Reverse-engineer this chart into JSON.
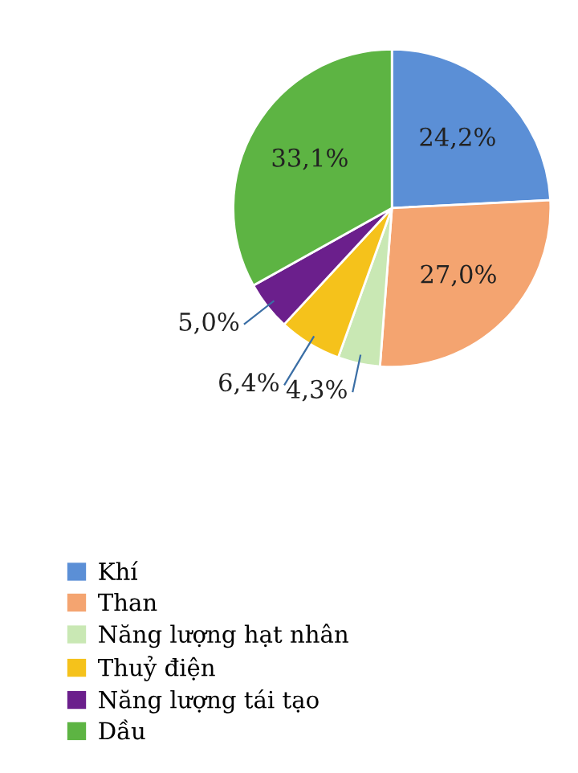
{
  "chart_data": {
    "type": "pie",
    "categories": [
      "Khí",
      "Than",
      "Năng lượng hạt nhân",
      "Thuỷ điện",
      "Năng lượng tái tạo",
      "Dầu"
    ],
    "values": [
      24.2,
      27.0,
      4.3,
      6.4,
      5.0,
      33.1
    ],
    "colors": [
      "#5b8fd6",
      "#f4a470",
      "#c9e8b4",
      "#f5c21b",
      "#6b1f8c",
      "#5db443"
    ],
    "value_labels": [
      "24,2%",
      "27,0%",
      "4,3%",
      "6,4%",
      "5,0%",
      "33,1%"
    ],
    "legend": "bottom"
  }
}
